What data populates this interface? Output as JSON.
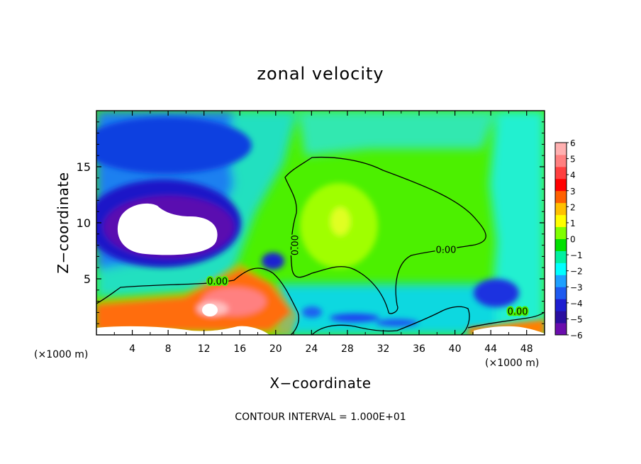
{
  "chart_data": {
    "type": "heatmap",
    "title": "zonal velocity",
    "xlabel": "X−coordinate",
    "ylabel": "Z−coordinate",
    "x_unit": "(×1000 m)",
    "y_unit": "(×1000 m)",
    "xlim": [
      0,
      50
    ],
    "ylim": [
      0,
      20
    ],
    "x_ticks": [
      4,
      8,
      12,
      16,
      20,
      24,
      28,
      32,
      36,
      40,
      44,
      48
    ],
    "y_ticks": [
      5,
      10,
      15
    ],
    "footer": "CONTOUR INTERVAL = 1.000E+01",
    "colorbar": {
      "min": -6,
      "max": 6,
      "tick_labels": [
        "6",
        "5",
        "4",
        "3",
        "2",
        "1",
        "0",
        "−1",
        "−2",
        "−3",
        "−4",
        "−5",
        "−6"
      ],
      "colors": [
        "#6a0dad",
        "#2a0fa0",
        "#1e1ed0",
        "#1e5af0",
        "#1ea0ff",
        "#00ffff",
        "#00f0a0",
        "#00e000",
        "#80ff00",
        "#ffff00",
        "#ffc000",
        "#ff6000",
        "#ff0000",
        "#ff4040",
        "#ff8080",
        "#ffb0b0"
      ]
    },
    "contour_labels": [
      {
        "text": "0.00",
        "x": 13.5,
        "y": 4.5
      },
      {
        "text": "0.00",
        "x": 22.5,
        "y": 8.0,
        "rotate": -90
      },
      {
        "text": "0.00",
        "x": 39,
        "y": 7.3
      },
      {
        "text": "0.00",
        "x": 47,
        "y": 1.8
      }
    ],
    "features": [
      {
        "kind": "blob",
        "value": -5.5,
        "cx": 9,
        "cy": 11.5,
        "rx": 10.5,
        "ry": 5.5
      },
      {
        "kind": "blob",
        "value": -4.5,
        "cx": 10,
        "cy": 13,
        "rx": 8,
        "ry": 4
      },
      {
        "kind": "blob",
        "value": -3.5,
        "cx": 6,
        "cy": 16.5,
        "rx": 8,
        "ry": 3
      },
      {
        "kind": "blob",
        "value": -4.5,
        "cx": 20,
        "cy": 6.5,
        "rx": 1.8,
        "ry": 1.3
      },
      {
        "kind": "blob",
        "value": -4.5,
        "cx": 44,
        "cy": 3,
        "rx": 2.5,
        "ry": 1.3
      },
      {
        "kind": "blob",
        "value": 1.5,
        "cx": 27,
        "cy": 10.5,
        "rx": 6,
        "ry": 4
      },
      {
        "kind": "blob",
        "value": 5.5,
        "cx": 14,
        "cy": 3,
        "rx": 4,
        "ry": 1.8
      },
      {
        "kind": "blob",
        "value": 3.5,
        "cx": 5,
        "cy": 2,
        "rx": 4,
        "ry": 1
      }
    ]
  }
}
